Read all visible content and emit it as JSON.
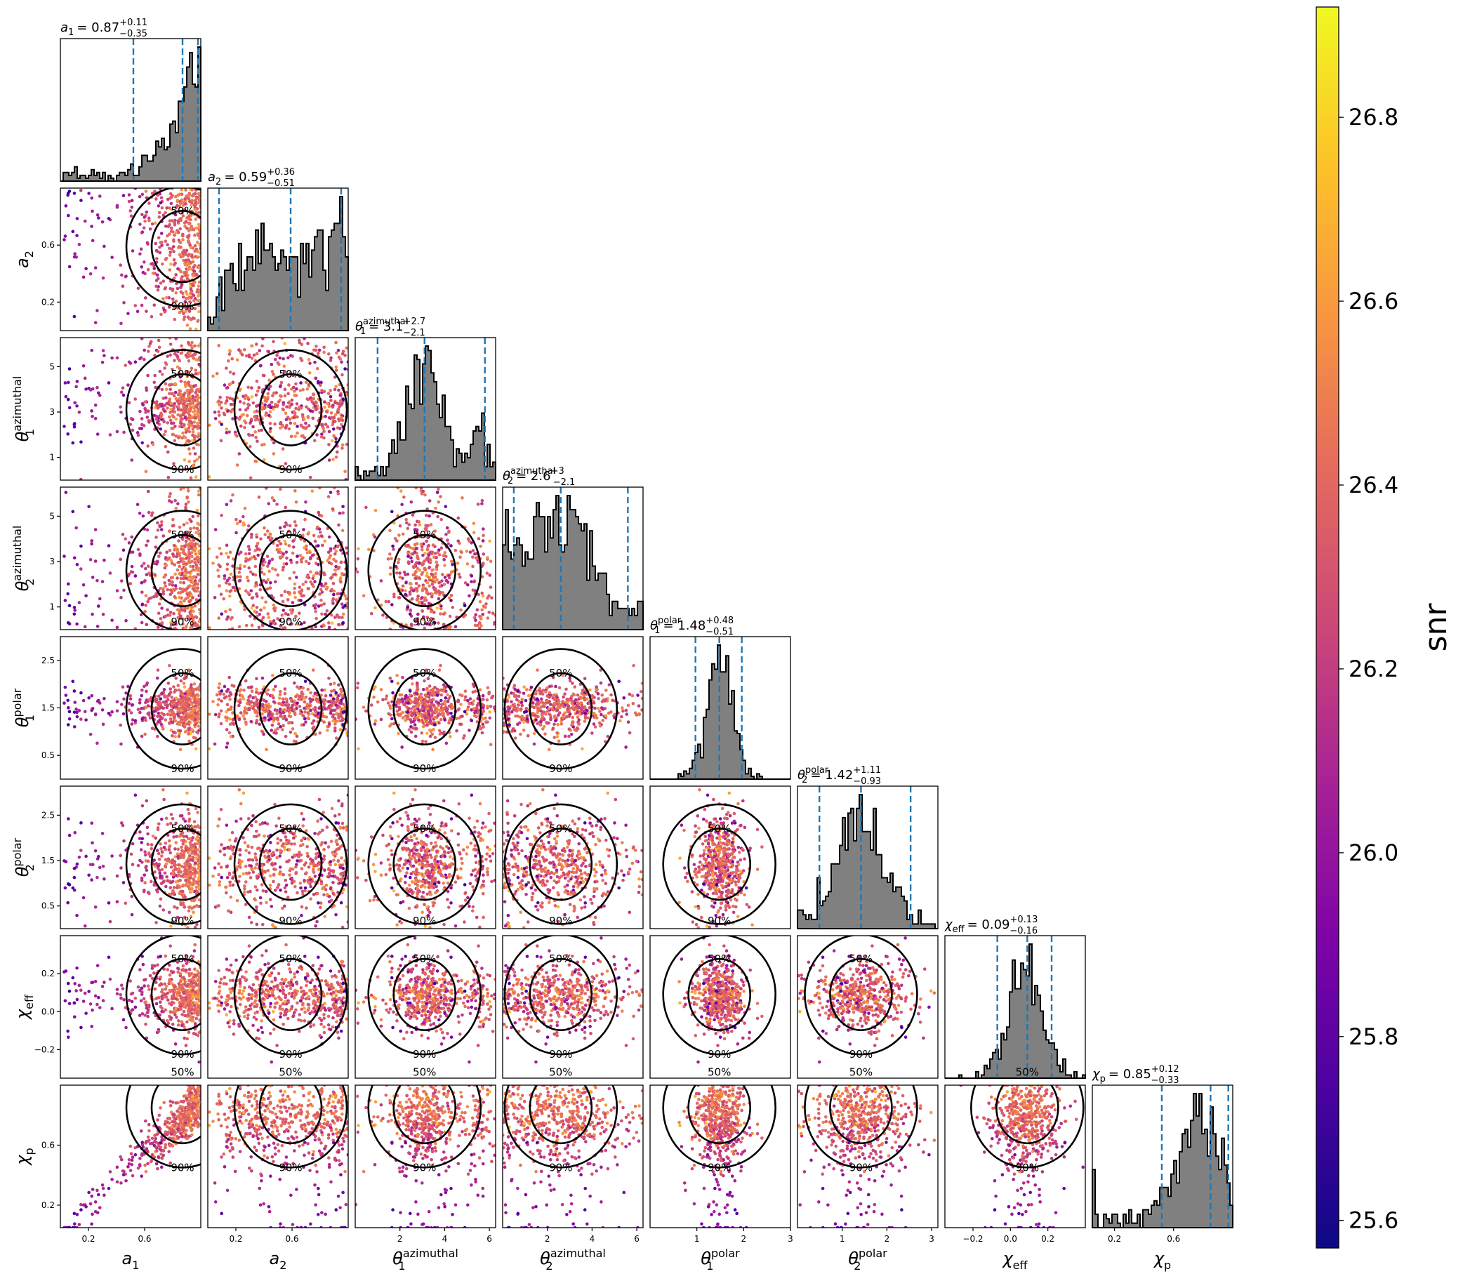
{
  "chart_data": {
    "type": "corner",
    "colorbar": {
      "label": "snr",
      "range": [
        25.57,
        26.92
      ],
      "ticks": [
        "25.6",
        "25.8",
        "26.0",
        "26.2",
        "26.4",
        "26.6",
        "26.8"
      ],
      "colormap": "plasma"
    },
    "contour_levels": [
      "50%",
      "90%"
    ],
    "parameters": [
      {
        "key": "a1",
        "label": "a",
        "sub": "1",
        "sup": "",
        "range": [
          0.0,
          1.0
        ],
        "ticks": [
          {
            "v": 0.2,
            "t": "0.2"
          },
          {
            "v": 0.6,
            "t": "0.6"
          }
        ],
        "title": {
          "median": "0.87",
          "plus": "+0.11",
          "minus": "−0.35"
        },
        "quantiles": [
          0.52,
          0.87,
          0.98
        ]
      },
      {
        "key": "a2",
        "label": "a",
        "sub": "2",
        "sup": "",
        "range": [
          0.0,
          1.0
        ],
        "ticks": [
          {
            "v": 0.2,
            "t": "0.2"
          },
          {
            "v": 0.6,
            "t": "0.6"
          }
        ],
        "title": {
          "median": "0.59",
          "plus": "+0.36",
          "minus": "−0.51"
        },
        "quantiles": [
          0.08,
          0.59,
          0.95
        ]
      },
      {
        "key": "th1az",
        "label": "θ",
        "sub": "1",
        "sup": "azimuthal",
        "range": [
          0.0,
          6.28
        ],
        "ticks": [
          {
            "v": 1,
            "t": "1"
          },
          {
            "v": 3,
            "t": "3"
          },
          {
            "v": 5,
            "t": "5"
          }
        ],
        "xticks": [
          {
            "v": 2,
            "t": "2"
          },
          {
            "v": 4,
            "t": "4"
          },
          {
            "v": 6,
            "t": "6"
          }
        ],
        "title": {
          "median": "3.1",
          "plus": "+2.7",
          "minus": "−2.1"
        },
        "quantiles": [
          1.0,
          3.1,
          5.8
        ]
      },
      {
        "key": "th2az",
        "label": "θ",
        "sub": "2",
        "sup": "azimuthal",
        "range": [
          0.0,
          6.28
        ],
        "ticks": [
          {
            "v": 1,
            "t": "1"
          },
          {
            "v": 3,
            "t": "3"
          },
          {
            "v": 5,
            "t": "5"
          }
        ],
        "xticks": [
          {
            "v": 2,
            "t": "2"
          },
          {
            "v": 4,
            "t": "4"
          },
          {
            "v": 6,
            "t": "6"
          }
        ],
        "title": {
          "median": "2.6",
          "plus": "+3",
          "minus": "−2.1"
        },
        "quantiles": [
          0.5,
          2.6,
          5.6
        ]
      },
      {
        "key": "th1p",
        "label": "θ",
        "sub": "1",
        "sup": "polar",
        "range": [
          0.0,
          3.0
        ],
        "ticks": [
          {
            "v": 0.5,
            "t": "0.5"
          },
          {
            "v": 1.5,
            "t": "1.5"
          },
          {
            "v": 2.5,
            "t": "2.5"
          }
        ],
        "xticks": [
          {
            "v": 1,
            "t": "1"
          },
          {
            "v": 2,
            "t": "2"
          },
          {
            "v": 3,
            "t": "3"
          }
        ],
        "title": {
          "median": "1.48",
          "plus": "+0.48",
          "minus": "−0.51"
        },
        "quantiles": [
          0.97,
          1.48,
          1.96
        ]
      },
      {
        "key": "th2p",
        "label": "θ",
        "sub": "2",
        "sup": "polar",
        "range": [
          0.0,
          3.14
        ],
        "ticks": [
          {
            "v": 0.5,
            "t": "0.5"
          },
          {
            "v": 1.5,
            "t": "1.5"
          },
          {
            "v": 2.5,
            "t": "2.5"
          }
        ],
        "xticks": [
          {
            "v": 1,
            "t": "1"
          },
          {
            "v": 2,
            "t": "2"
          },
          {
            "v": 3,
            "t": "3"
          }
        ],
        "title": {
          "median": "1.42",
          "plus": "+1.11",
          "minus": "−0.93"
        },
        "quantiles": [
          0.49,
          1.42,
          2.53
        ]
      },
      {
        "key": "chieff",
        "label": "χ",
        "sub": "eff",
        "sup": "",
        "range": [
          -0.35,
          0.4
        ],
        "ticks": [
          {
            "v": -0.2,
            "t": "−0.2"
          },
          {
            "v": 0.0,
            "t": "0.0"
          },
          {
            "v": 0.2,
            "t": "0.2"
          }
        ],
        "title": {
          "median": "0.09",
          "plus": "+0.13",
          "minus": "−0.16"
        },
        "quantiles": [
          -0.07,
          0.09,
          0.22
        ]
      },
      {
        "key": "chip",
        "label": "χ",
        "sub": "p",
        "sup": "",
        "range": [
          0.05,
          1.0
        ],
        "ticks": [
          {
            "v": 0.2,
            "t": "0.2"
          },
          {
            "v": 0.6,
            "t": "0.6"
          }
        ],
        "title": {
          "median": "0.85",
          "plus": "+0.12",
          "minus": "−0.33"
        },
        "quantiles": [
          0.52,
          0.85,
          0.97
        ]
      }
    ]
  }
}
